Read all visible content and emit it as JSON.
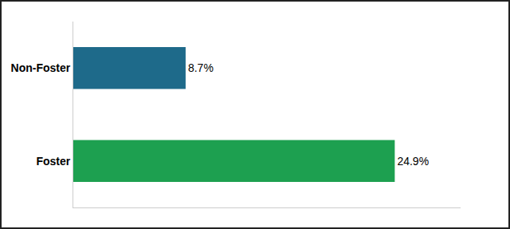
{
  "chart_data": {
    "type": "bar",
    "orientation": "horizontal",
    "categories": [
      "Foster",
      "Non-Foster"
    ],
    "values": [
      24.9,
      8.7
    ],
    "value_labels": [
      "24.9%",
      "8.7%"
    ],
    "data_labels": true,
    "colors": [
      "#1da050",
      "#1e6a8a"
    ],
    "xlim": [
      0,
      30
    ],
    "tick_labels": "y",
    "grid": false
  }
}
